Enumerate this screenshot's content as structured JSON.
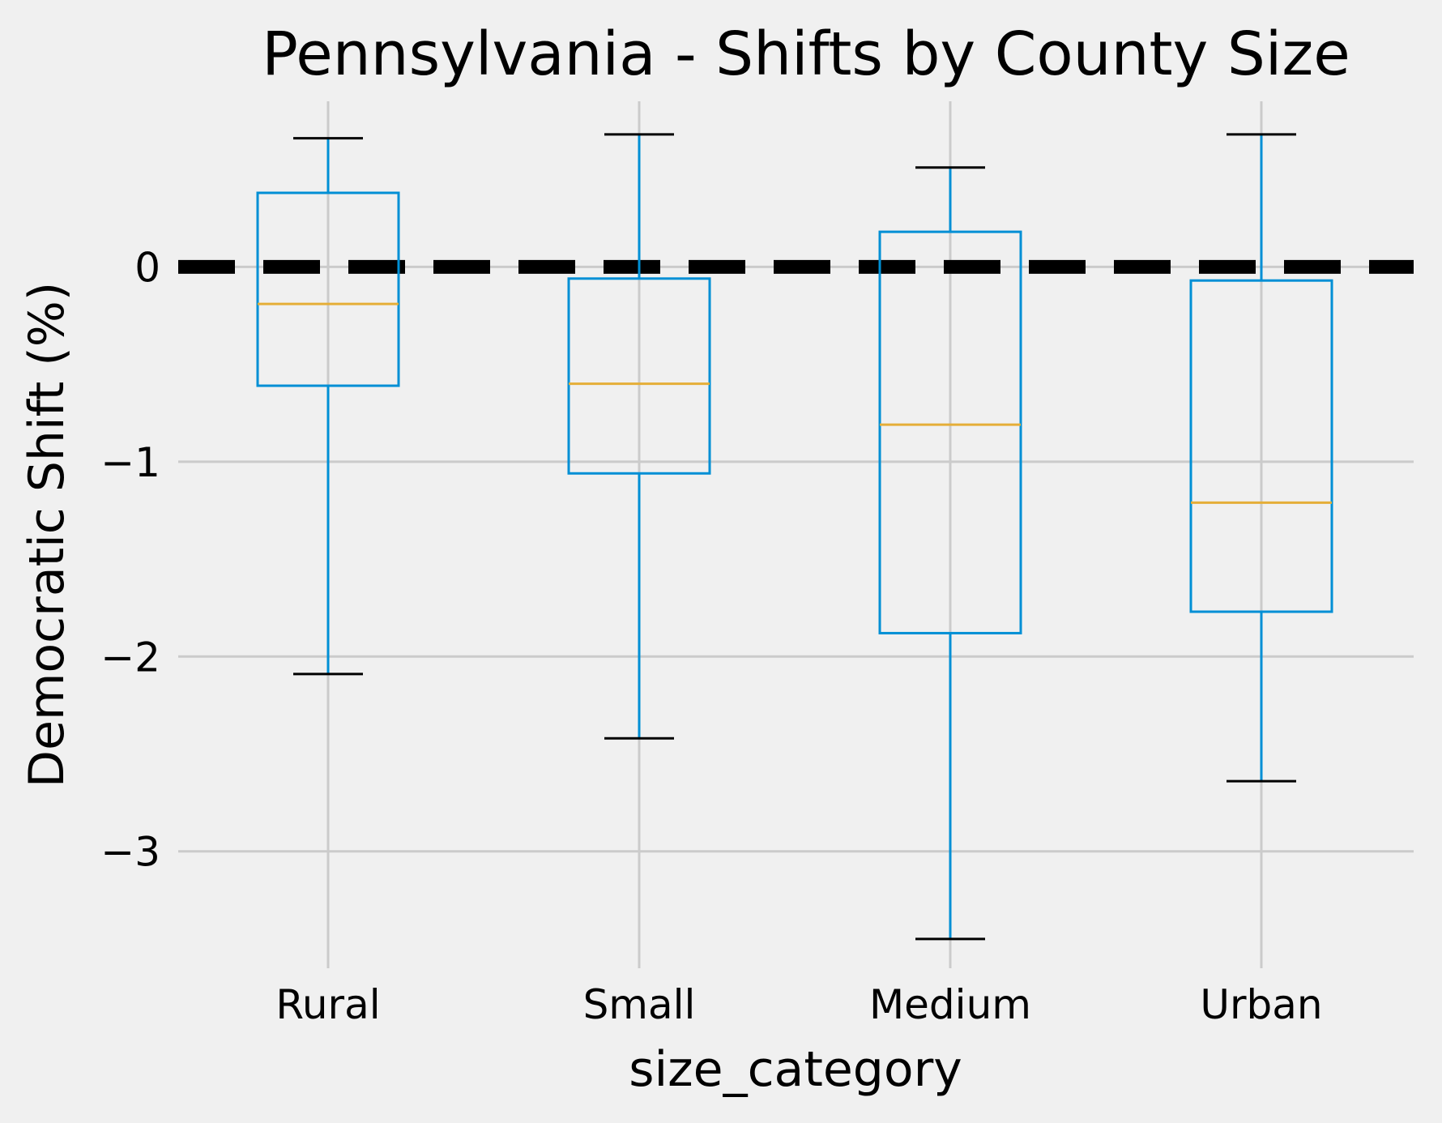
{
  "chart_data": {
    "type": "box",
    "title": "Pennsylvania - Shifts by County Size",
    "xlabel": "size_category",
    "ylabel": "Democratic Shift (%)",
    "ylim": [
      -3.6,
      0.85
    ],
    "yticks": [
      0,
      -1,
      -2,
      -3
    ],
    "ytick_labels": [
      "0",
      "−1",
      "−2",
      "−3"
    ],
    "categories": [
      "Rural",
      "Small",
      "Medium",
      "Urban"
    ],
    "boxes": [
      {
        "category": "Rural",
        "whisker_low": -2.09,
        "q1": -0.61,
        "median": -0.19,
        "q3": 0.38,
        "whisker_high": 0.66
      },
      {
        "category": "Small",
        "whisker_low": -2.42,
        "q1": -1.06,
        "median": -0.6,
        "q3": -0.06,
        "whisker_high": 0.68
      },
      {
        "category": "Medium",
        "whisker_low": -3.45,
        "q1": -1.88,
        "median": -0.81,
        "q3": 0.18,
        "whisker_high": 0.51
      },
      {
        "category": "Urban",
        "whisker_low": -2.64,
        "q1": -1.77,
        "median": -1.21,
        "q3": -0.07,
        "whisker_high": 0.68
      }
    ],
    "reference_line": {
      "y": 0,
      "style": "dashed",
      "color": "#000000"
    },
    "grid": true,
    "colors": {
      "background": "#f0f0f0",
      "grid": "#cbcbcb",
      "box": "#008fd5",
      "median": "#e5ae38",
      "caps": "#000000",
      "reference_line": "#000000"
    }
  }
}
